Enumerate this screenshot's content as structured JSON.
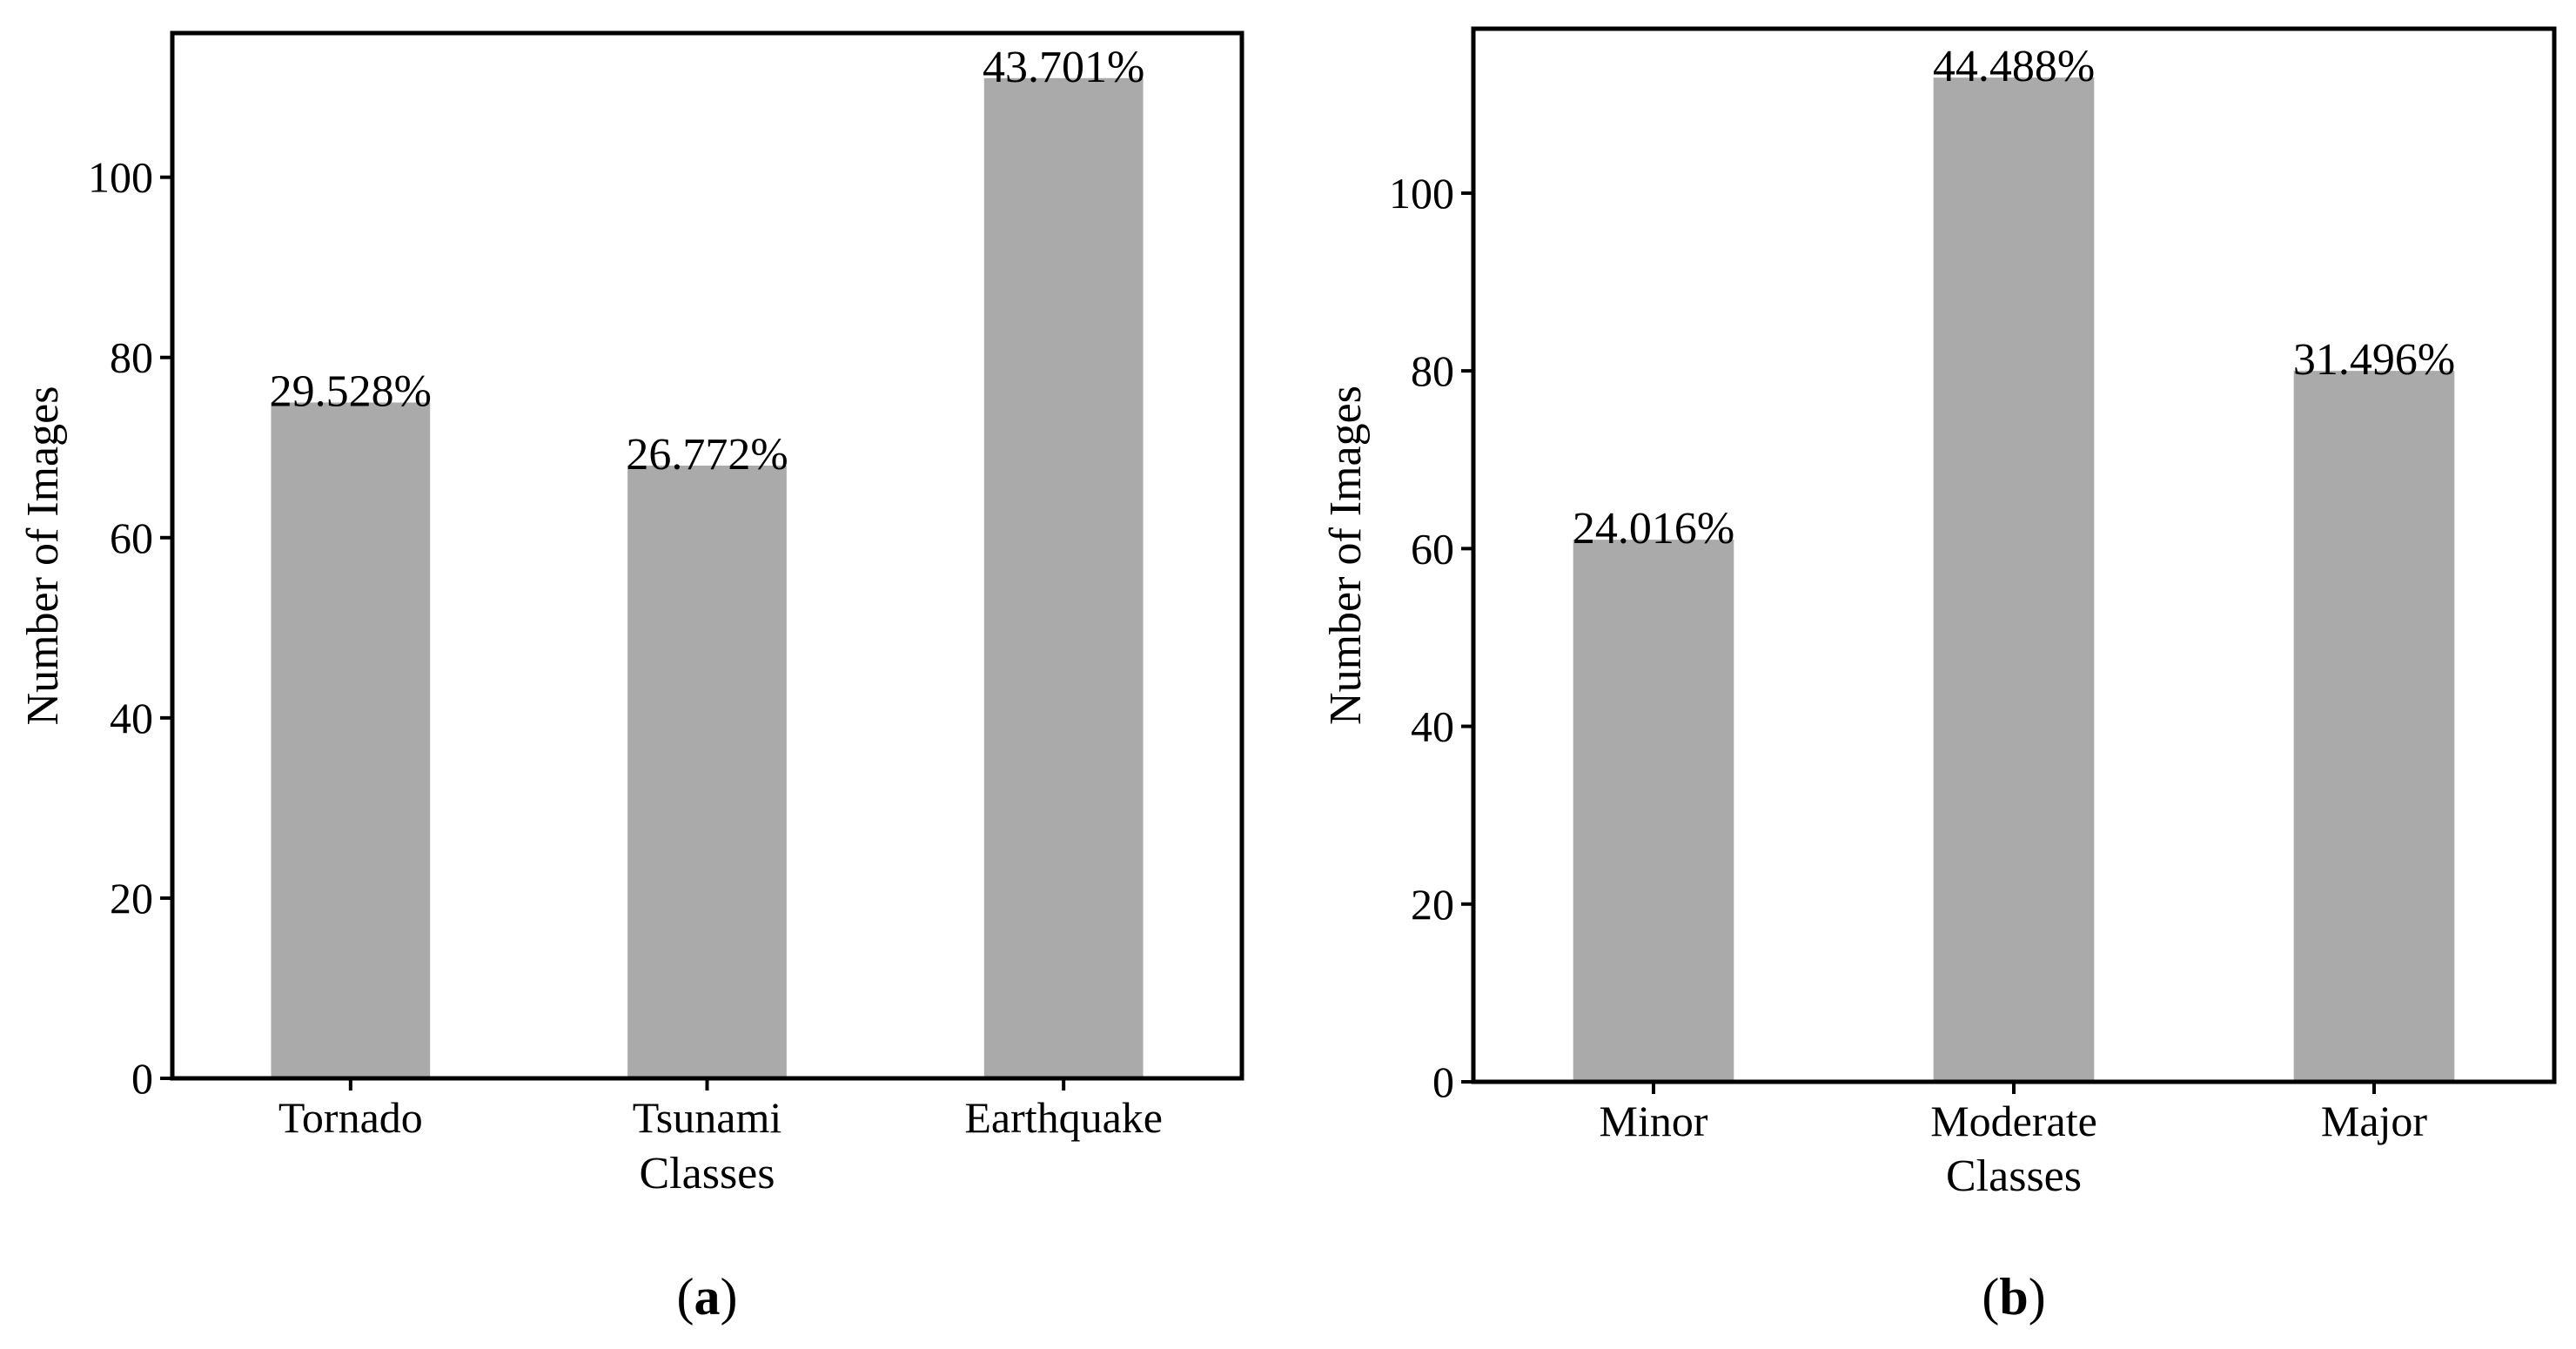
{
  "chart_data": [
    {
      "type": "bar",
      "panel": "a",
      "panel_label": "a",
      "categories": [
        "Tornado",
        "Tsunami",
        "Earthquake"
      ],
      "values": [
        75,
        68,
        111
      ],
      "bar_labels": [
        "29.528%",
        "26.772%",
        "43.701%"
      ],
      "xlabel": "Classes",
      "ylabel": "Number of Images",
      "ylim": [
        0,
        116
      ],
      "yticks": [
        0,
        20,
        40,
        60,
        80,
        100
      ],
      "bar_color": "#aaaaaa"
    },
    {
      "type": "bar",
      "panel": "b",
      "panel_label": "b",
      "categories": [
        "Minor",
        "Moderate",
        "Major"
      ],
      "values": [
        61,
        113,
        80
      ],
      "bar_labels": [
        "24.016%",
        "44.488%",
        "31.496%"
      ],
      "xlabel": "Classes",
      "ylabel": "Number of Images",
      "ylim": [
        0,
        118.5
      ],
      "yticks": [
        0,
        20,
        40,
        60,
        80,
        100
      ],
      "bar_color": "#aaaaaa"
    }
  ]
}
